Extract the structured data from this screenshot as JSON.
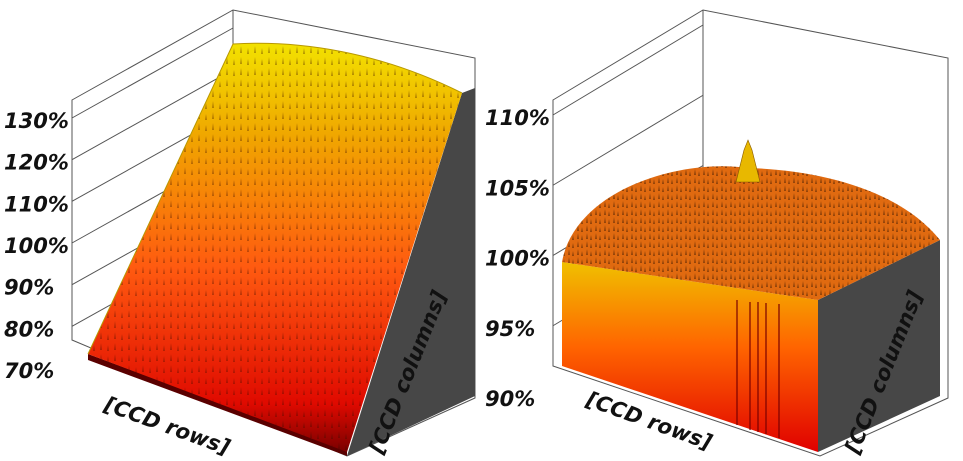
{
  "chart_data": [
    {
      "type": "surface3d",
      "zlabel_ticks": [
        "70%",
        "80%",
        "90%",
        "100%",
        "110%",
        "120%",
        "130%"
      ],
      "zlim": [
        70,
        130
      ],
      "xlabel": "[CCD rows]",
      "ylabel": "[CCD columns]",
      "colors": {
        "low": "#8b0000",
        "mid": "#ff3a00",
        "high": "#f2e000",
        "side": "#474747"
      },
      "surface": {
        "back_level": 130,
        "front_level": 76,
        "profile": "tilted plane with noise spikes"
      }
    },
    {
      "type": "surface3d",
      "zlabel_ticks": [
        "90%",
        "95%",
        "100%",
        "105%",
        "110%"
      ],
      "zlim": [
        90,
        110
      ],
      "xlabel": "[CCD rows]",
      "ylabel": "[CCD columns]",
      "colors": {
        "low": "#e00000",
        "mid": "#ff7a00",
        "high": "#f2e000",
        "side": "#474747"
      },
      "surface": {
        "peak_level": 107.5,
        "dome_level": 104.5,
        "edge_level": 100,
        "profile": "dome with central peak"
      }
    }
  ]
}
